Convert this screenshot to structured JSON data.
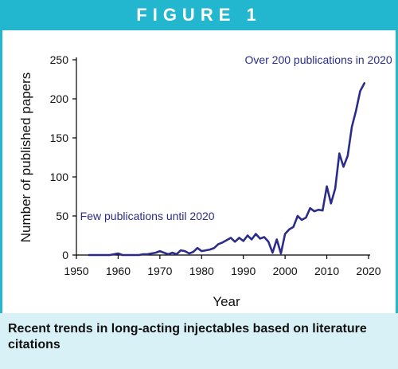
{
  "header": {
    "title": "FIGURE 1"
  },
  "caption": "Recent trends in long-acting injectables based on literature citations",
  "colors": {
    "accent": "#23b7cf",
    "series": "#2b2c8a",
    "caption_bg": "#d8f1f6"
  },
  "chart_data": {
    "type": "line",
    "title": "",
    "xlabel": "Year",
    "ylabel": "Number of published papers",
    "xlim": [
      1950,
      2020
    ],
    "ylim": [
      0,
      250
    ],
    "xticks": [
      1950,
      1960,
      1970,
      1980,
      1990,
      2000,
      2010,
      2020
    ],
    "yticks": [
      0,
      50,
      100,
      150,
      200,
      250
    ],
    "grid": false,
    "legend": "none",
    "annotations": [
      {
        "text": "Over 200 publications in 2020",
        "x": 2008,
        "y": 245
      },
      {
        "text": "Few publications until 2020",
        "x": 1967,
        "y": 45
      }
    ],
    "series": [
      {
        "x": [
          1953,
          1955,
          1957,
          1958,
          1959,
          1960,
          1961,
          1962,
          1963,
          1964,
          1965,
          1966,
          1967,
          1968,
          1969,
          1970,
          1971,
          1972,
          1973,
          1974,
          1975,
          1976,
          1977,
          1978,
          1979,
          1980,
          1981,
          1982,
          1983,
          1984,
          1985,
          1986,
          1987,
          1988,
          1989,
          1990,
          1991,
          1992,
          1993,
          1994,
          1995,
          1996,
          1997,
          1998,
          1999,
          2000,
          2001,
          2002,
          2003,
          2004,
          2005,
          2006,
          2007,
          2008,
          2009,
          2010,
          2011,
          2012,
          2013,
          2014,
          2015,
          2016,
          2017,
          2018,
          2019
        ],
        "values": [
          0,
          0,
          0,
          0,
          1,
          2,
          0,
          0,
          0,
          0,
          0,
          1,
          1,
          2,
          3,
          5,
          3,
          1,
          3,
          1,
          6,
          5,
          2,
          4,
          9,
          5,
          6,
          7,
          9,
          14,
          16,
          19,
          22,
          17,
          22,
          18,
          25,
          20,
          27,
          21,
          23,
          17,
          3,
          20,
          2,
          27,
          33,
          36,
          50,
          45,
          48,
          60,
          56,
          58,
          57,
          88,
          66,
          85,
          130,
          113,
          127,
          164,
          185,
          210,
          220
        ]
      }
    ]
  }
}
